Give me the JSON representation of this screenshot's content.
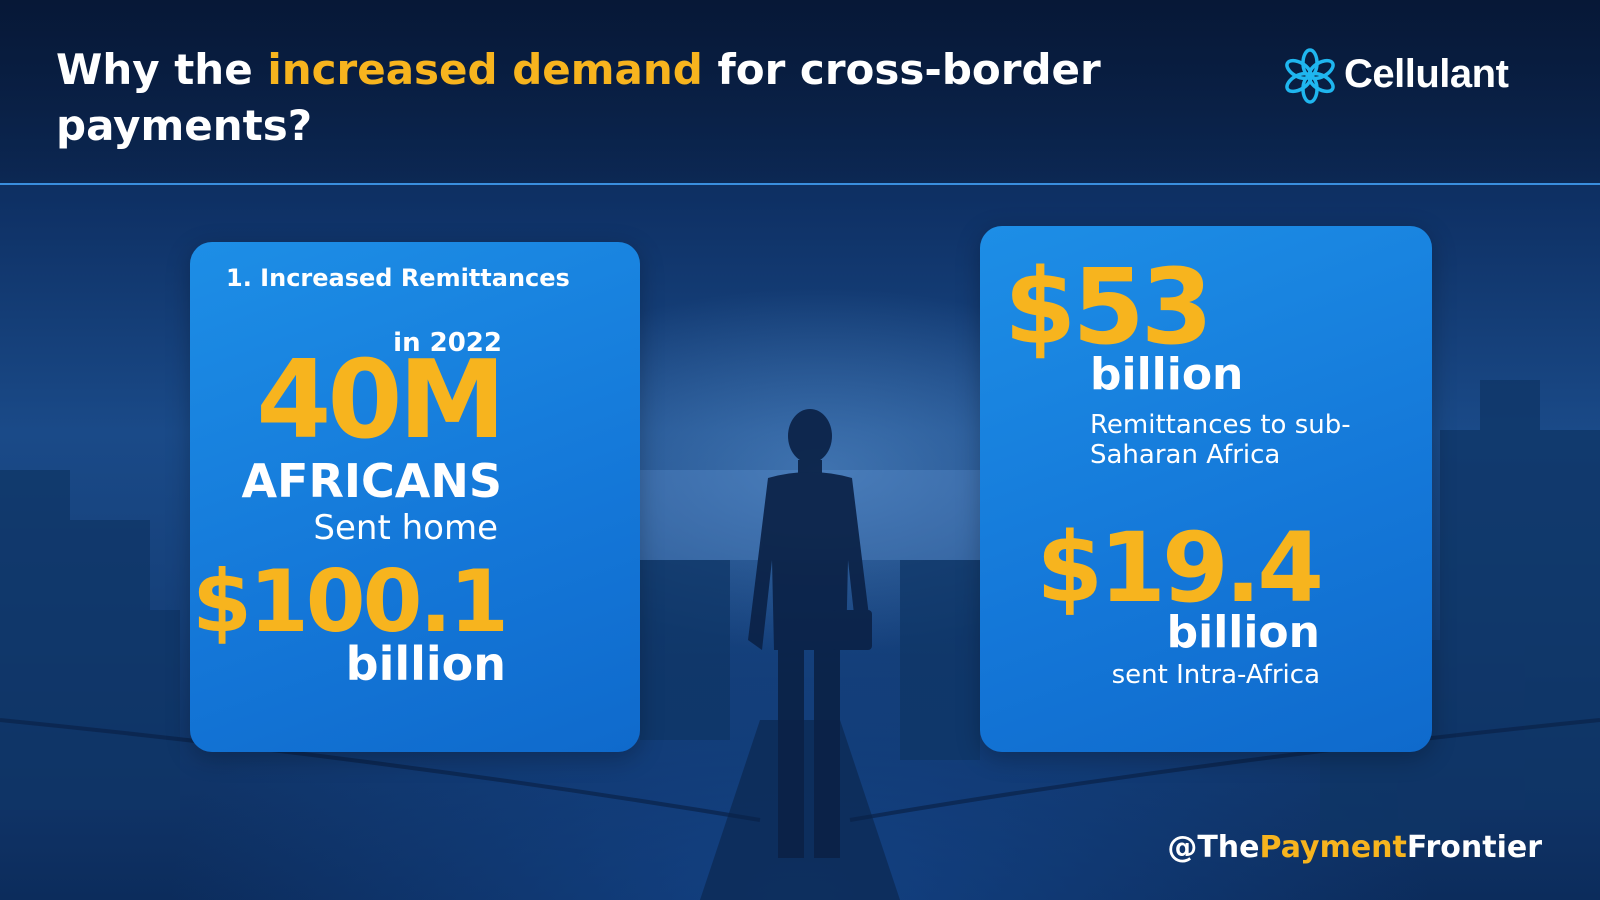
{
  "header": {
    "title_pre": "Why the ",
    "title_highlight": "increased demand",
    "title_post": " for cross-border payments?",
    "logo_text": "Cellulant",
    "logo_icon": "cellulant-flower-icon"
  },
  "left_card": {
    "heading": "1. Increased Remittances",
    "year_label": "in 2022",
    "big_number": "40M",
    "subject": "AFRICANS",
    "action": "Sent home",
    "amount": "$100.1",
    "amount_unit": "billion"
  },
  "right_card": {
    "amount_1": "$53",
    "amount_1_unit": "billion",
    "amount_1_caption": "Remittances to sub-Saharan Africa",
    "amount_2": "$19.4",
    "amount_2_unit": "billion",
    "amount_2_caption": "sent Intra-Africa"
  },
  "footer": {
    "handle_pre": "@The",
    "handle_highlight": "Payment",
    "handle_post": "Frontier"
  },
  "colors": {
    "accent": "#f7b41e",
    "card_blue": "#1684dd",
    "background": "#0e3064"
  }
}
